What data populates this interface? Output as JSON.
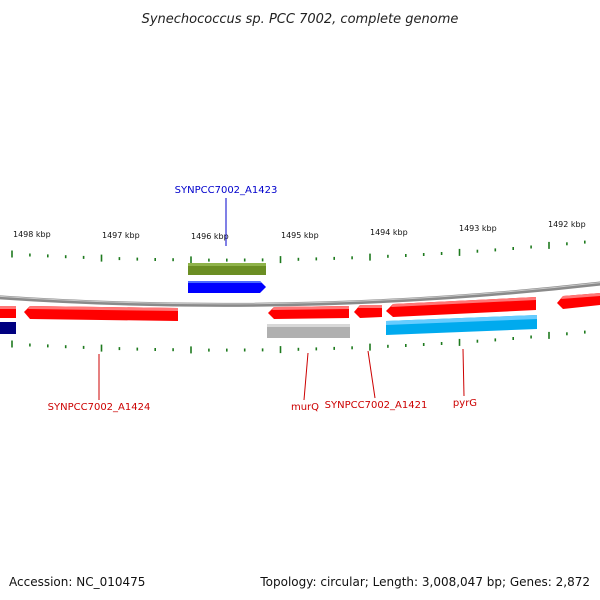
{
  "title": "Synechococcus sp. PCC 7002, complete genome",
  "footer": {
    "accession": "Accession: NC_010475",
    "summary": "Topology: circular; Length: 3,008,047 bp; Genes: 2,872"
  },
  "colors": {
    "backbone": "#8a8a8a",
    "tick": "#1e7a1e",
    "red_gene": "#ff0000",
    "blue_gene": "#0000ff",
    "navy_gene": "#000080",
    "olive_gene": "#6b8e23",
    "grey_gene": "#b0b0b0",
    "cyan_gene": "#00aaee",
    "label_blue": "#0000cc",
    "label_red": "#cc0000"
  },
  "ticks": [
    {
      "label": "1498 kbp"
    },
    {
      "label": "1497 kbp"
    },
    {
      "label": "1496 kbp"
    },
    {
      "label": "1495 kbp"
    },
    {
      "label": "1494 kbp"
    },
    {
      "label": "1493 kbp"
    },
    {
      "label": "1492 kbp"
    }
  ],
  "gene_labels": [
    {
      "name": "SYNPCC7002_A1423",
      "color": "blue"
    },
    {
      "name": "SYNPCC7002_A1424",
      "color": "red"
    },
    {
      "name": "murQ",
      "color": "red"
    },
    {
      "name": "SYNPCC7002_A1421",
      "color": "red"
    },
    {
      "name": "pyrG",
      "color": "red"
    }
  ]
}
